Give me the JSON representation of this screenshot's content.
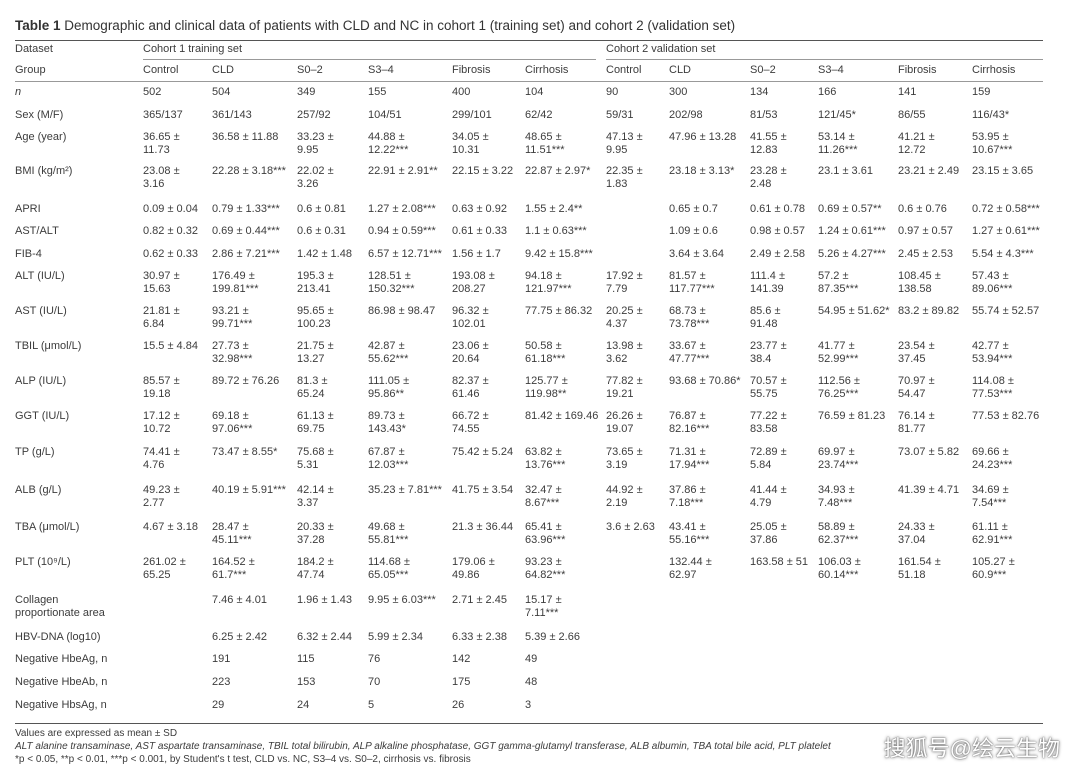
{
  "title": {
    "label": "Table 1",
    "text": "Demographic and clinical data of patients with CLD and NC in cohort 1 (training set) and cohort 2 (validation set)"
  },
  "table": {
    "dataset_label": "Dataset",
    "cohorts": [
      "Cohort 1 training set",
      "Cohort 2 validation set"
    ],
    "group_label": "Group",
    "groups": [
      "Control",
      "CLD",
      "S0–2",
      "S3–4",
      "Fibrosis",
      "Cirrhosis",
      "Control",
      "CLD",
      "S0–2",
      "S3–4",
      "Fibrosis",
      "Cirrhosis"
    ],
    "rows": [
      [
        "n",
        "502",
        "504",
        "349",
        "155",
        "400",
        "104",
        "90",
        "300",
        "134",
        "166",
        "141",
        "159"
      ],
      [
        "Sex (M/F)",
        "365/137",
        "361/143",
        "257/92",
        "104/51",
        "299/101",
        "62/42",
        "59/31",
        "202/98",
        "81/53",
        "121/45*",
        "86/55",
        "116/43*"
      ],
      [
        "Age (year)",
        "36.65 ±\n11.73",
        "36.58 ± 11.88",
        "33.23 ±\n9.95",
        "44.88 ±\n12.22***",
        "34.05 ±\n10.31",
        "48.65 ±\n11.51***",
        "47.13 ±\n9.95",
        "47.96 ± 13.28",
        "41.55 ±\n12.83",
        "53.14 ±\n11.26***",
        "41.21 ±\n12.72",
        "53.95 ±\n10.67***"
      ],
      [
        "BMI (kg/m²)",
        "23.08 ±\n3.16",
        "22.28 ± 3.18***",
        "22.02 ±\n3.26",
        "22.91 ± 2.91**",
        "22.15 ± 3.22",
        "22.87 ± 2.97*",
        "22.35 ±\n1.83",
        "23.18 ± 3.13*",
        "23.28 ±\n2.48",
        "23.1 ± 3.61",
        "23.21 ± 2.49",
        "23.15 ± 3.65"
      ],
      [
        "APRI",
        "0.09 ± 0.04",
        "0.79 ± 1.33***",
        "0.6 ± 0.81",
        "1.27 ± 2.08***",
        "0.63 ± 0.92",
        "1.55 ± 2.4**",
        null,
        "0.65 ± 0.7",
        "0.61 ± 0.78",
        "0.69 ± 0.57**",
        "0.6 ± 0.76",
        "0.72 ± 0.58***"
      ],
      [
        "AST/ALT",
        "0.82 ± 0.32",
        "0.69 ± 0.44***",
        "0.6 ± 0.31",
        "0.94 ± 0.59***",
        "0.61 ± 0.33",
        "1.1 ± 0.63***",
        null,
        "1.09 ± 0.6",
        "0.98 ± 0.57",
        "1.24 ± 0.61***",
        "0.97 ± 0.57",
        "1.27 ± 0.61***"
      ],
      [
        "FIB-4",
        "0.62 ± 0.33",
        "2.86 ± 7.21***",
        "1.42 ± 1.48",
        "6.57 ± 12.71***",
        "1.56 ± 1.7",
        "9.42 ± 15.8***",
        null,
        "3.64 ± 3.64",
        "2.49 ± 2.58",
        "5.26 ± 4.27***",
        "2.45 ± 2.53",
        "5.54 ± 4.3***"
      ],
      [
        "ALT (IU/L)",
        "30.97 ±\n15.63",
        "176.49 ±\n199.81***",
        "195.3 ±\n213.41",
        "128.51 ±\n150.32***",
        "193.08 ±\n208.27",
        "94.18 ±\n121.97***",
        "17.92 ±\n7.79",
        "81.57 ±\n117.77***",
        "111.4 ±\n141.39",
        "57.2 ±\n87.35***",
        "108.45 ±\n138.58",
        "57.43 ±\n89.06***"
      ],
      [
        "AST (IU/L)",
        "21.81 ±\n6.84",
        "93.21 ±\n99.71***",
        "95.65 ±\n100.23",
        "86.98 ± 98.47",
        "96.32 ±\n102.01",
        "77.75 ± 86.32",
        "20.25 ±\n4.37",
        "68.73 ±\n73.78***",
        "85.6 ±\n91.48",
        "54.95 ± 51.62*",
        "83.2 ± 89.82",
        "55.74 ± 52.57"
      ],
      [
        "TBIL (μmol/L)",
        "15.5 ± 4.84",
        "27.73 ±\n32.98***",
        "21.75 ±\n13.27",
        "42.87 ±\n55.62***",
        "23.06 ±\n20.64",
        "50.58 ±\n61.18***",
        "13.98 ±\n3.62",
        "33.67 ±\n47.77***",
        "23.77 ±\n38.4",
        "41.77 ±\n52.99***",
        "23.54 ±\n37.45",
        "42.77 ±\n53.94***"
      ],
      [
        "ALP (IU/L)",
        "85.57 ±\n19.18",
        "89.72 ± 76.26",
        "81.3 ±\n65.24",
        "111.05 ±\n95.86**",
        "82.37 ±\n61.46",
        "125.77 ±\n119.98**",
        "77.82 ±\n19.21",
        "93.68 ± 70.86*",
        "70.57 ±\n55.75",
        "112.56 ±\n76.25***",
        "70.97 ±\n54.47",
        "114.08 ±\n77.53***"
      ],
      [
        "GGT (IU/L)",
        "17.12 ±\n10.72",
        "69.18 ±\n97.06***",
        "61.13 ±\n69.75",
        "89.73 ±\n143.43*",
        "66.72 ±\n74.55",
        "81.42 ± 169.46",
        "26.26 ±\n19.07",
        "76.87 ±\n82.16***",
        "77.22 ±\n83.58",
        "76.59 ± 81.23",
        "76.14 ±\n81.77",
        "77.53 ± 82.76"
      ],
      [
        "TP (g/L)",
        "74.41 ±\n4.76",
        "73.47 ± 8.55*",
        "75.68 ±\n5.31",
        "67.87 ±\n12.03***",
        "75.42 ± 5.24",
        "63.82 ±\n13.76***",
        "73.65 ±\n3.19",
        "71.31 ±\n17.94***",
        "72.89 ±\n5.84",
        "69.97 ±\n23.74***",
        "73.07 ± 5.82",
        "69.66 ±\n24.23***"
      ],
      [
        "ALB (g/L)",
        "49.23 ±\n2.77",
        "40.19 ± 5.91***",
        "42.14 ±\n3.37",
        "35.23 ± 7.81***",
        "41.75 ± 3.54",
        "32.47 ±\n8.67***",
        "44.92 ±\n2.19",
        "37.86 ±\n7.18***",
        "41.44 ±\n4.79",
        "34.93 ±\n7.48***",
        "41.39 ± 4.71",
        "34.69 ±\n7.54***"
      ],
      [
        "TBA (μmol/L)",
        "4.67 ± 3.18",
        "28.47 ±\n45.11***",
        "20.33 ±\n37.28",
        "49.68 ±\n55.81***",
        "21.3 ± 36.44",
        "65.41 ±\n63.96***",
        "3.6 ± 2.63",
        "43.41 ±\n55.16***",
        "25.05 ±\n37.86",
        "58.89 ±\n62.37***",
        "24.33 ±\n37.04",
        "61.11 ±\n62.91***"
      ],
      [
        "PLT (10⁹/L)",
        "261.02 ±\n65.25",
        "164.52 ±\n61.7***",
        "184.2 ±\n47.74",
        "114.68 ±\n65.05***",
        "179.06 ±\n49.86",
        "93.23 ±\n64.82***",
        null,
        "132.44 ±\n62.97",
        "163.58 ± 51",
        "106.03 ±\n60.14***",
        "161.54 ±\n51.18",
        "105.27 ±\n60.9***"
      ],
      [
        "Collagen\nproportionate area",
        null,
        "7.46 ± 4.01",
        "1.96 ± 1.43",
        "9.95 ± 6.03***",
        "2.71 ± 2.45",
        "15.17 ±\n7.11***",
        null,
        null,
        null,
        null,
        null,
        null
      ],
      [
        "HBV-DNA (log10)",
        null,
        "6.25 ± 2.42",
        "6.32 ± 2.44",
        "5.99 ± 2.34",
        "6.33 ± 2.38",
        "5.39 ± 2.66",
        null,
        null,
        null,
        null,
        null,
        null
      ],
      [
        "Negative HbeAg, n",
        null,
        "191",
        "115",
        "76",
        "142",
        "49",
        null,
        null,
        null,
        null,
        null,
        null
      ],
      [
        "Negative HbeAb, n",
        null,
        "223",
        "153",
        "70",
        "175",
        "48",
        null,
        null,
        null,
        null,
        null,
        null
      ],
      [
        "Negative HbsAg, n",
        null,
        "29",
        "24",
        "5",
        "26",
        "3",
        null,
        null,
        null,
        null,
        null,
        null
      ]
    ]
  },
  "footnotes": [
    "Values are expressed as mean ± SD",
    "ALT alanine transaminase, AST aspartate transaminase, TBIL total bilirubin, ALP alkaline phosphatase, GGT gamma-glutamyl transferase, ALB albumin, TBA total bile acid, PLT platelet",
    "*p < 0.05, **p < 0.01, ***p < 0.001, by Student's t test, CLD vs. NC, S3–4 vs. S0–2, cirrhosis vs. fibrosis"
  ],
  "watermark": "搜狐号@绘云生物"
}
